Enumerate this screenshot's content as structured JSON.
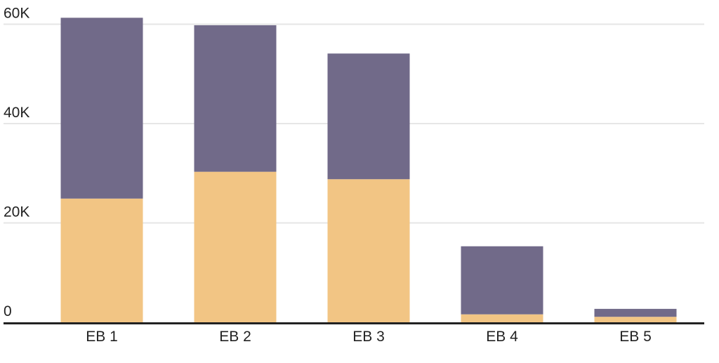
{
  "chart_data": {
    "type": "bar",
    "stacked": true,
    "title": "",
    "xlabel": "",
    "ylabel": "",
    "categories": [
      "EB 1",
      "EB 2",
      "EB 3",
      "EB 4",
      "EB 5"
    ],
    "series": [
      {
        "values": [
          24900,
          30300,
          28800,
          1600,
          1100
        ],
        "color": "#f2c584"
      },
      {
        "values": [
          36400,
          29500,
          25300,
          13700,
          1600
        ],
        "color": "#716a89"
      }
    ],
    "ylim": [
      0,
      62000
    ],
    "yticks": [
      0,
      20000,
      40000,
      60000
    ],
    "ytick_labels": [
      "0",
      "20K",
      "40K",
      "60K"
    ],
    "grid": true,
    "gridline_color": "#e6e6e6",
    "axis_color": "#222222"
  }
}
